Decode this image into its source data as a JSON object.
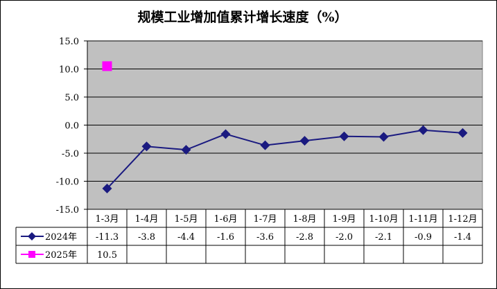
{
  "chart_data": {
    "type": "line",
    "title": "规模工业增加值累计增长速度（%）",
    "categories": [
      "1-3月",
      "1-4月",
      "1-5月",
      "1-6月",
      "1-7月",
      "1-8月",
      "1-9月",
      "1-10月",
      "1-11月",
      "1-12月"
    ],
    "ylim": [
      -15,
      15
    ],
    "yticks": [
      "15.0",
      "10.0",
      "5.0",
      "0.0",
      "-5.0",
      "-10.0",
      "-15.0"
    ],
    "grid": true,
    "legend": "data-table",
    "series": [
      {
        "name": "2024年",
        "values": [
          -11.3,
          -3.8,
          -4.4,
          -1.6,
          -3.6,
          -2.8,
          -2.0,
          -2.1,
          -0.9,
          -1.4
        ],
        "labels": [
          "-11.3",
          "-3.8",
          "-4.4",
          "-1.6",
          "-3.6",
          "-2.8",
          "-2.0",
          "-2.1",
          "-0.9",
          "-1.4"
        ],
        "color": "#1a1a80",
        "marker": "diamond"
      },
      {
        "name": "2025年",
        "values": [
          10.5,
          null,
          null,
          null,
          null,
          null,
          null,
          null,
          null,
          null
        ],
        "labels": [
          "10.5",
          "",
          "",
          "",
          "",
          "",
          "",
          "",
          "",
          ""
        ],
        "color": "#ff00ff",
        "marker": "square"
      }
    ]
  },
  "colors": {
    "plot_bg": "#c0c0c0",
    "grid": "#000000"
  }
}
